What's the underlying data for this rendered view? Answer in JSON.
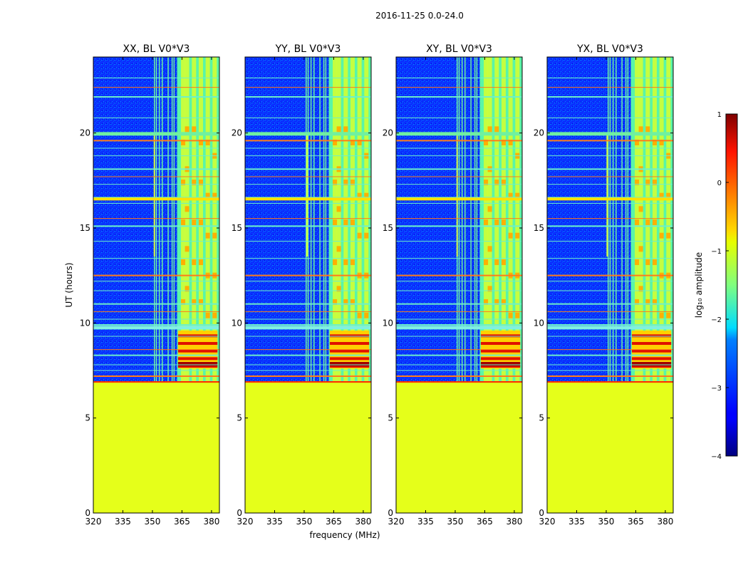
{
  "chart_data": {
    "type": "heatmap",
    "suptitle": "2016-11-25 0.0-24.0",
    "xlabel": "frequency (MHz)",
    "ylabel": "UT (hours)",
    "xlim": [
      320,
      384
    ],
    "ylim": [
      0,
      24
    ],
    "xticks": [
      "320",
      "335",
      "350",
      "365",
      "380"
    ],
    "yticks": [
      "0",
      "5",
      "10",
      "15",
      "20"
    ],
    "panels": [
      {
        "title": "XX, BL V0*V3",
        "spike_x": 351
      },
      {
        "title": "YY, BL V0*V3",
        "spike_x": 351.5
      },
      {
        "title": "XY, BL V0*V3",
        "spike_x": 351
      },
      {
        "title": "YX, BL V0*V3",
        "spike_x": 350.5
      }
    ],
    "data_start_hour": 6.9,
    "fill_value_log10": -1.0,
    "strong_band_mhz": [
      362.5,
      384
    ],
    "burst_hours": [
      7.6,
      9.6
    ],
    "vertical_channels_mhz": [
      351,
      352,
      353.5,
      355,
      358,
      360,
      361
    ],
    "horizontal_rfi_hours": [
      7.2,
      7.5,
      7.8,
      8.3,
      8.6,
      9.3,
      9.9,
      10.2,
      10.6,
      11.0,
      11.7,
      12.2,
      12.5,
      13.4,
      14.3,
      15.1,
      15.5,
      16.3,
      16.6,
      17.3,
      17.7,
      18.1,
      18.8,
      19.2,
      19.6,
      20.0,
      20.8,
      21.9,
      22.4,
      22.9
    ],
    "colorbar": {
      "label": "log₁₀ amplitude",
      "range": [
        -4,
        1
      ],
      "ticks": [
        "1",
        "0",
        "−1",
        "−2",
        "−3",
        "−4"
      ],
      "colormap": "jet"
    }
  }
}
